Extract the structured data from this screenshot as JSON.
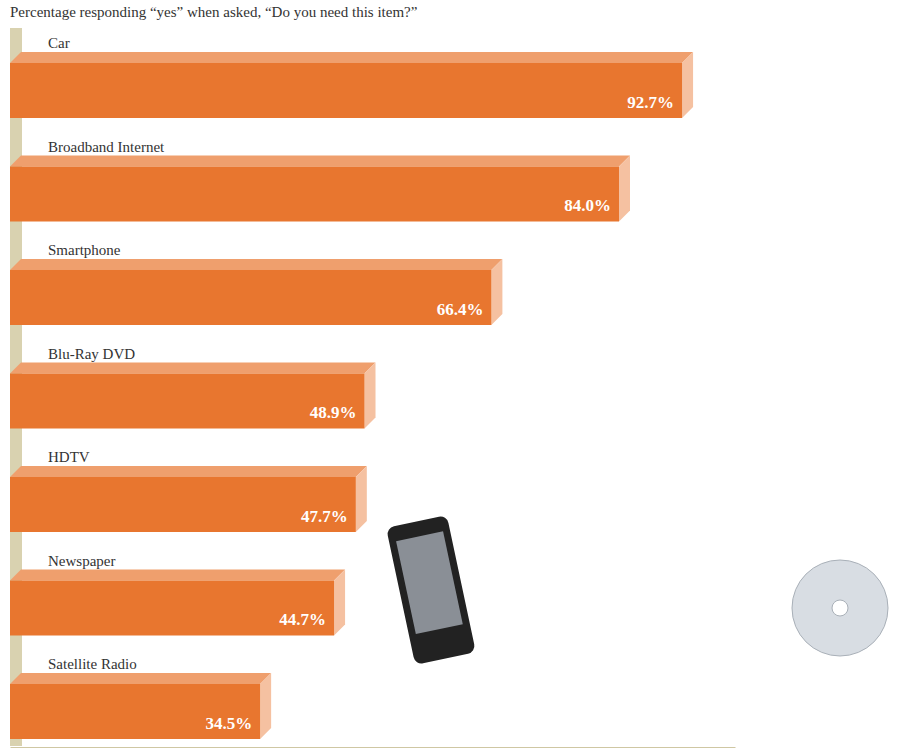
{
  "chart_data": {
    "type": "bar",
    "orientation": "horizontal",
    "title": "Percentage responding “yes” when asked, “Do you need this item?”",
    "categories": [
      "Car",
      "Broadband Internet",
      "Smartphone",
      "Blu-Ray DVD",
      "HDTV",
      "Newspaper",
      "Satellite Radio"
    ],
    "values": [
      92.7,
      84.0,
      66.4,
      48.9,
      47.7,
      44.7,
      34.5
    ],
    "value_labels": [
      "92.7%",
      "84.0%",
      "66.4%",
      "48.9%",
      "47.7%",
      "44.7%",
      "34.5%"
    ],
    "color": "#e8762f",
    "xlim": [
      0,
      100
    ],
    "data_labels": true,
    "tick_labels": false,
    "grid": false
  }
}
